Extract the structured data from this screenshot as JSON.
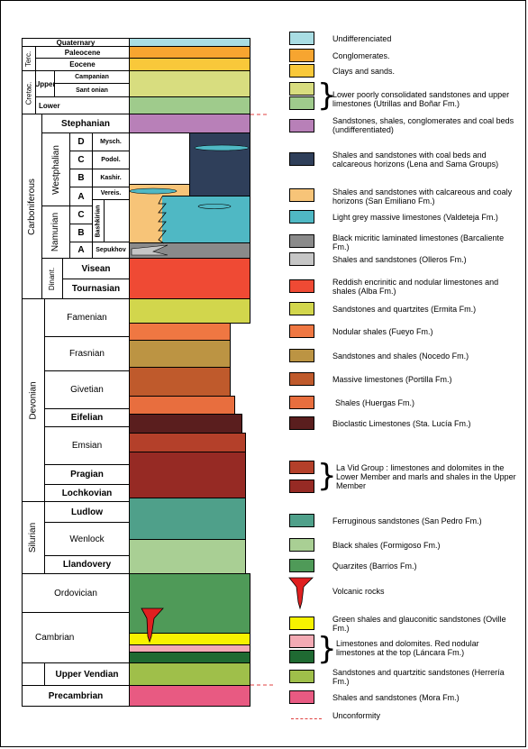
{
  "colors": {
    "quaternary": "#a9dde3",
    "paleocene": "#f7a530",
    "eocene": "#f9c83a",
    "upper_cret": "#d8dd7f",
    "lower_cret": "#9fcb8c",
    "stephanian": "#b880b8",
    "lena": "#2f3f5a",
    "emiliano": "#f7c478",
    "valdeteja": "#4fb8c4",
    "barcaliente": "#8a8a8a",
    "olleros": "#c6c6c6",
    "alba": "#ef4a34",
    "ermita": "#d2d64c",
    "fueyo": "#ef7742",
    "nocedo": "#bc9443",
    "portilla": "#bf5a2c",
    "huergas": "#e86e3e",
    "stalucia": "#5a1e1e",
    "lavid_lower": "#b4402a",
    "lavid_upper": "#962a24",
    "sanpedro": "#4fa08a",
    "formigoso": "#a9cf94",
    "barrios": "#4f9a58",
    "volcanic": "#e02020",
    "oville": "#f7f200",
    "lancara_red": "#f3aab4",
    "lancara_dol": "#1f6a32",
    "herreria": "#9fbf4a",
    "mora": "#e85a82",
    "unconformity": "#e04040"
  },
  "column": {
    "quaternary": "Quaternary",
    "paleocene": "Paleocene",
    "eocene": "Eocene",
    "terc": "Terc.",
    "cretac": "Cretac.",
    "upper": "Upper",
    "lower": "Lower",
    "campanian": "Campanian",
    "santonian": "Sant onian",
    "carboniferous": "Carboniferous",
    "stephanian": "Stephanian",
    "westphalian": "Westphalian",
    "namurian": "Namurian",
    "dinant": "Dinant.",
    "d": "D",
    "c": "C",
    "b": "B",
    "a": "A",
    "mysch": "Mysch.",
    "podol": "Podol.",
    "kashir": "Kashir.",
    "vereis": "Vereis.",
    "bashkirian": "Bashkirian",
    "sepukhov": "Sepukhov",
    "visean": "Visean",
    "tournasian": "Tournasian",
    "devonian": "Devonian",
    "famenian": "Famenian",
    "frasnian": "Frasnian",
    "givetian": "Givetian",
    "eifelian": "Eifelian",
    "emsian": "Emsian",
    "pragian": "Pragian",
    "lochkovian": "Lochkovian",
    "silurian": "Silurian",
    "ludlow": "Ludlow",
    "wenlock": "Wenlock",
    "llandovery": "Llandovery",
    "ordovician": "Ordovician",
    "cambrian": "Cambrian",
    "upper_vendian": "Upper Vendian",
    "precambrian": "Precambrian"
  },
  "legend": [
    {
      "key": "quaternary",
      "text": "Undifferenciated"
    },
    {
      "key": "paleocene",
      "text": "Conglomerates."
    },
    {
      "key": "eocene",
      "text": "Clays and sands."
    },
    {
      "key": "cretaceous",
      "text": "Lower poorly consolidated sandstones and upper limestones (Utrillas and Boñar Fm.)"
    },
    {
      "key": "stephanian",
      "text": "Sandstones, shales, conglomerates and coal beds (undifferentiated)"
    },
    {
      "key": "lena",
      "text": "Shales and sandstones with coal beds and calcareous horizons (Lena and Sama Groups)"
    },
    {
      "key": "emiliano",
      "text": "Shales and sandstones with calcareous and coaly horizons (San Emiliano Fm.)"
    },
    {
      "key": "valdeteja",
      "text": "Light grey massive limestones (Valdeteja Fm.)"
    },
    {
      "key": "barcaliente",
      "text": "Black micritic laminated limestones (Barcaliente Fm.)"
    },
    {
      "key": "olleros",
      "text": "Shales and sandstones (Olleros Fm.)"
    },
    {
      "key": "alba",
      "text": "Reddish encrinitic and nodular limestones and shales (Alba Fm.)"
    },
    {
      "key": "ermita",
      "text": "Sandstones and quartzites (Ermita Fm.)"
    },
    {
      "key": "fueyo",
      "text": "Nodular shales (Fueyo Fm.)"
    },
    {
      "key": "nocedo",
      "text": "Sandstones and shales (Nocedo Fm.)"
    },
    {
      "key": "portilla",
      "text": "Massive limestones (Portilla Fm.)"
    },
    {
      "key": "huergas",
      "text": "Shales (Huergas Fm.)"
    },
    {
      "key": "stalucia",
      "text": "Bioclastic Limestones (Sta. Lucía Fm.)"
    },
    {
      "key": "lavid",
      "text": "La Vid Group : limestones and dolomites in the Lower Member and marls and shales in the Upper Member"
    },
    {
      "key": "sanpedro",
      "text": "Ferruginous sandstones (San Pedro Fm.)"
    },
    {
      "key": "formigoso",
      "text": "Black shales (Formigoso Fm.)"
    },
    {
      "key": "barrios",
      "text": "Quarzites (Barrios Fm.)"
    },
    {
      "key": "volcanic",
      "text": "Volcanic rocks"
    },
    {
      "key": "oville",
      "text": "Green shales and glauconitic sandstones (Oville Fm.)"
    },
    {
      "key": "lancara",
      "text": "Limestones and dolomites. Red nodular limestones at the top (Láncara Fm.)"
    },
    {
      "key": "herreria",
      "text": "Sandstones and quartzitic sandstones (Herrería Fm.)"
    },
    {
      "key": "mora",
      "text": "Shales and sandstones (Mora Fm.)"
    },
    {
      "key": "unconformity",
      "text": "Unconformity"
    }
  ]
}
